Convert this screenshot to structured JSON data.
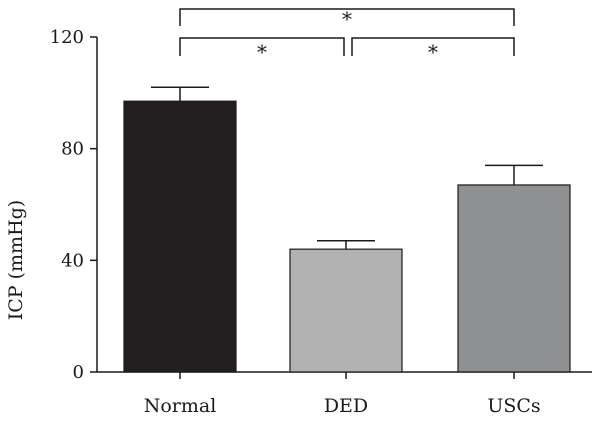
{
  "chart_data": {
    "type": "bar",
    "title": "",
    "xlabel": "",
    "ylabel": "ICP (mmHg)",
    "categories": [
      "Normal",
      "DED",
      "USCs"
    ],
    "values": [
      97,
      44,
      67
    ],
    "errors": [
      5,
      3,
      7
    ],
    "bar_colors": [
      "#231f20",
      "#b2b2b2",
      "#8f9092"
    ],
    "ylim": [
      0,
      120
    ],
    "yticks": [
      0,
      40,
      80,
      120
    ],
    "grid": false,
    "legend": "none",
    "significance": [
      {
        "from": "Normal",
        "to": "DED",
        "label": "*"
      },
      {
        "from": "DED",
        "to": "USCs",
        "label": "*"
      },
      {
        "from": "Normal",
        "to": "USCs",
        "label": "*"
      }
    ]
  }
}
